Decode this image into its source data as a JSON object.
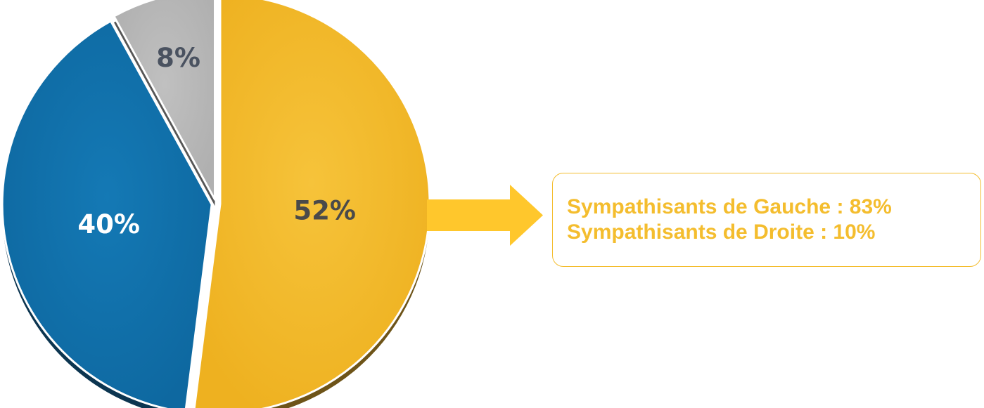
{
  "chart_data": {
    "type": "pie",
    "title": "",
    "slices": [
      {
        "label": "52%",
        "value": 52,
        "color": "#F3BA2B",
        "side_color": "#6E5418",
        "text_color": "#4A4A4A"
      },
      {
        "label": "40%",
        "value": 40,
        "color": "#1272AE",
        "side_color": "#0C3550",
        "text_color": "#FFFFFF"
      },
      {
        "label": "8%",
        "value": 8,
        "color": "#B7B7B7",
        "side_color": "#565656",
        "text_color": "#4A5260"
      }
    ]
  },
  "annotation": {
    "lines": [
      "Sympathisants de Gauche : 83%",
      "Sympathisants de Droite : 10%"
    ],
    "color": "#F4BD2E",
    "arrow_color": "#FFC72C"
  }
}
